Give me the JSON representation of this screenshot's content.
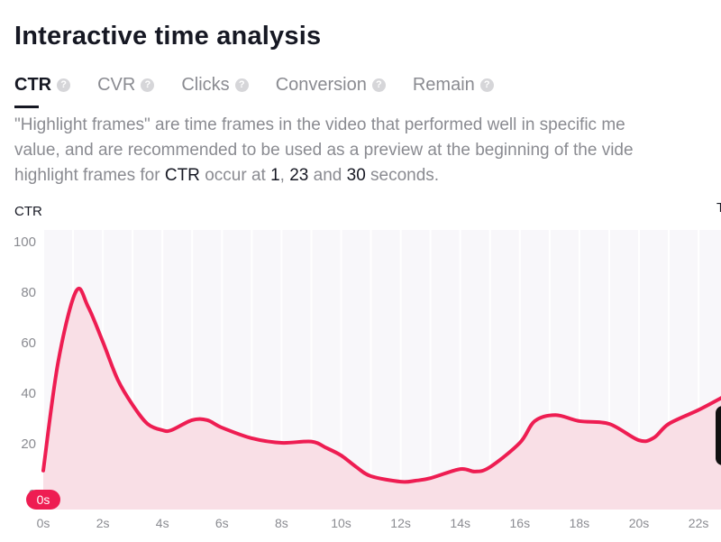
{
  "header": {
    "title": "Interactive time analysis"
  },
  "tabs": [
    {
      "label": "CTR",
      "active": true,
      "icon": "question-circle-icon"
    },
    {
      "label": "CVR",
      "active": false,
      "icon": "question-circle-icon"
    },
    {
      "label": "Clicks",
      "active": false,
      "icon": "question-circle-icon"
    },
    {
      "label": "Conversion",
      "active": false,
      "icon": "question-circle-icon"
    },
    {
      "label": "Remain",
      "active": false,
      "icon": "question-circle-icon"
    }
  ],
  "description": {
    "line1": "\"Highlight frames\" are time frames in the video that performed well in specific me",
    "line2": "value, and are recommended to be used as a preview at the beginning of the vide",
    "line3_pre": "highlight frames for ",
    "metric": "CTR",
    "line3_mid": " occur at ",
    "t1": "1",
    "sep1": ", ",
    "t2": "23",
    "sep2": " and ",
    "t3": "30",
    "line3_post": " seconds."
  },
  "cut_label": "T",
  "colors": {
    "line": "#ee1d52",
    "fill": "#f9dfe6",
    "plot_bg": "#f8f7fa",
    "marker": "#ee1d52"
  },
  "chart_data": {
    "type": "area",
    "ylabel": "CTR",
    "xlabel": "",
    "ylim": [
      0,
      100
    ],
    "yticks": [
      "0",
      "20",
      "40",
      "60",
      "80",
      "100"
    ],
    "xticks": [
      "0s",
      "2s",
      "4s",
      "6s",
      "8s",
      "10s",
      "12s",
      "14s",
      "16s",
      "18s",
      "20s",
      "22s"
    ],
    "grid": "vertical",
    "current_marker": "0s",
    "x": [
      0,
      0.5,
      1.1,
      1.5,
      2,
      2.5,
      3,
      3.5,
      4,
      4.3,
      5,
      5.5,
      6,
      7,
      8,
      9,
      9.5,
      10,
      10.5,
      11,
      12,
      12.5,
      13,
      14,
      14.5,
      15,
      16,
      16.5,
      17.2,
      18,
      19,
      20,
      20.5,
      21,
      22,
      22.8
    ],
    "y": [
      9,
      52,
      80,
      74,
      60,
      45,
      35,
      27.5,
      25,
      25,
      29,
      29,
      26,
      21.8,
      20,
      20.5,
      18,
      15,
      10.5,
      6.8,
      4.6,
      5,
      6,
      9.6,
      8.6,
      10.4,
      20,
      28.6,
      31,
      28.6,
      27.5,
      21,
      22,
      27.5,
      33,
      38
    ]
  }
}
